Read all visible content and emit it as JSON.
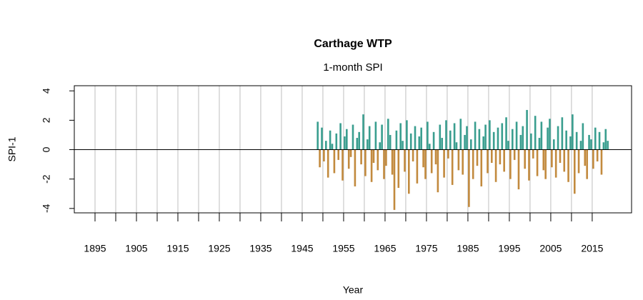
{
  "chart_data": {
    "type": "bar",
    "title": "Carthage WTP",
    "subtitle": "1-month SPI",
    "x_label": "Year",
    "y_label": "SPI-1",
    "positive_color": "#3a9e8f",
    "negative_color": "#c28a3e",
    "grid": true,
    "xlim": [
      1890,
      2024.5
    ],
    "ylim": [
      -4.3,
      4.35
    ],
    "xticks": [
      1895,
      1905,
      1915,
      1925,
      1935,
      1945,
      1955,
      1965,
      1975,
      1985,
      1995,
      2005,
      2015
    ],
    "xminor_ticks": [
      1900,
      1910,
      1920,
      1930,
      1940,
      1950,
      1960,
      1970,
      1980,
      1990,
      2000,
      2010
    ],
    "yticks": [
      -4,
      -2,
      0,
      2,
      4
    ],
    "x": [
      1948.75,
      1949.25,
      1949.75,
      1950.25,
      1950.75,
      1951.25,
      1951.75,
      1952.25,
      1952.75,
      1953.25,
      1953.75,
      1954.25,
      1954.75,
      1955.25,
      1955.75,
      1956.25,
      1956.75,
      1957.25,
      1957.75,
      1958.25,
      1958.75,
      1959.25,
      1959.75,
      1960.25,
      1960.75,
      1961.25,
      1961.75,
      1962.25,
      1962.75,
      1963.25,
      1963.75,
      1964.25,
      1964.75,
      1965.25,
      1965.75,
      1966.25,
      1966.75,
      1967.25,
      1967.75,
      1968.25,
      1968.75,
      1969.25,
      1969.75,
      1970.25,
      1970.75,
      1971.25,
      1971.75,
      1972.25,
      1972.75,
      1973.25,
      1973.75,
      1974.25,
      1974.75,
      1975.25,
      1975.75,
      1976.25,
      1976.75,
      1977.25,
      1977.75,
      1978.25,
      1978.75,
      1979.25,
      1979.75,
      1980.25,
      1980.75,
      1981.25,
      1981.75,
      1982.25,
      1982.75,
      1983.25,
      1983.75,
      1984.25,
      1984.75,
      1985.25,
      1985.75,
      1986.25,
      1986.75,
      1987.25,
      1987.75,
      1988.25,
      1988.75,
      1989.25,
      1989.75,
      1990.25,
      1990.75,
      1991.25,
      1991.75,
      1992.25,
      1992.75,
      1993.25,
      1993.75,
      1994.25,
      1994.75,
      1995.25,
      1995.75,
      1996.25,
      1996.75,
      1997.25,
      1997.75,
      1998.25,
      1998.75,
      1999.25,
      1999.75,
      2000.25,
      2000.75,
      2001.25,
      2001.75,
      2002.25,
      2002.75,
      2003.25,
      2003.75,
      2004.25,
      2004.75,
      2005.25,
      2005.75,
      2006.25,
      2006.75,
      2007.25,
      2007.75,
      2008.25,
      2008.75,
      2009.25,
      2009.75,
      2010.25,
      2010.75,
      2011.25,
      2011.75,
      2012.25,
      2012.75,
      2013.25,
      2013.75,
      2014.25,
      2014.75,
      2015.25,
      2015.75,
      2016.25,
      2016.75,
      2017.25,
      2017.75,
      2018.25,
      2018.75
    ],
    "values": [
      1.9,
      -1.2,
      1.5,
      -0.8,
      0.6,
      -1.9,
      1.3,
      0.4,
      -1.6,
      1.1,
      -0.7,
      1.8,
      -2.1,
      0.9,
      1.4,
      -1.3,
      -0.5,
      1.7,
      -2.5,
      0.8,
      1.2,
      -1.0,
      2.4,
      -1.8,
      0.7,
      1.6,
      -2.2,
      -0.9,
      1.9,
      -1.4,
      0.5,
      1.7,
      -2.0,
      -1.1,
      2.1,
      1.0,
      -1.7,
      -4.1,
      1.3,
      -2.6,
      1.8,
      0.6,
      -1.5,
      2.0,
      -3.0,
      1.1,
      -0.8,
      1.6,
      -2.3,
      0.9,
      1.5,
      -1.2,
      -2.0,
      1.9,
      0.4,
      -1.6,
      1.2,
      -1.0,
      -2.9,
      1.7,
      0.8,
      -1.9,
      2.0,
      -0.6,
      1.3,
      -2.4,
      1.8,
      0.5,
      -1.4,
      2.1,
      -1.7,
      1.0,
      1.6,
      -3.9,
      0.7,
      -2.0,
      1.9,
      -1.1,
      1.4,
      -2.5,
      0.9,
      1.7,
      -1.6,
      2.0,
      -0.9,
      1.2,
      -2.2,
      1.5,
      -1.0,
      1.8,
      -1.5,
      2.2,
      0.6,
      -2.0,
      1.4,
      -0.7,
      1.9,
      -2.7,
      1.0,
      1.6,
      -1.3,
      2.7,
      -2.1,
      1.1,
      -0.6,
      2.3,
      -1.8,
      0.8,
      1.9,
      -1.4,
      -2.0,
      1.5,
      2.1,
      -1.2,
      0.7,
      -1.9,
      1.6,
      -0.9,
      2.2,
      -1.5,
      1.3,
      -2.2,
      0.9,
      2.4,
      -3.0,
      1.2,
      -1.6,
      0.6,
      1.8,
      -1.1,
      -2.0,
      1.0,
      0.7,
      -1.3,
      1.5,
      -0.8,
      1.2,
      -1.7,
      0.5,
      1.4,
      0.6
    ]
  }
}
